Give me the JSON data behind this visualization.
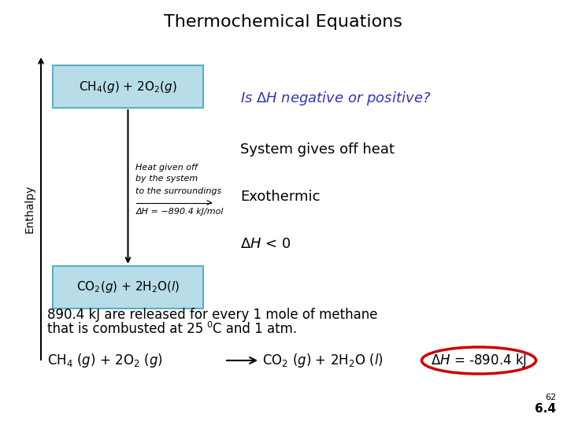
{
  "title": "Thermochemical Equations",
  "title_fontsize": 16,
  "bg_color": "#ffffff",
  "box_facecolor": "#b8dde8",
  "box_edgecolor": "#5aafcc",
  "top_box_text": "CH$_4$($g$) + 2O$_2$($g$)",
  "bottom_box_text": "CO$_2$($g$) + 2H$_2$O($l$)",
  "heat_line1": "Heat given off",
  "heat_line2": "by the system",
  "heat_line3": "to the surroundings",
  "heat_dh": "ΔH = −890.4 kJ/mol",
  "q_color": "#3333bb",
  "q_text": "Is $\\Delta H$ negative or positive?",
  "ans1": "System gives off heat",
  "ans2": "Exothermic",
  "ans3": "$\\Delta H$ < 0",
  "para1": "890.4 kJ are released for every 1 mole of methane",
  "para2a": "that is combusted at 25",
  "para2b": "0",
  "para2c": "C and 1 atm.",
  "eq_left": "CH$_4$ ($g$) + 2O$_2$ ($g$)",
  "eq_right": "CO$_2$ ($g$) + 2H$_2$O ($l$)",
  "eq_dh": "$\\Delta H$ = -890.4 kJ",
  "circle_color": "#cc0000",
  "slide1": "62",
  "slide2": "6.4",
  "ylabel": "Enthalpy",
  "axis_color": "#000000",
  "text_color": "#000000"
}
